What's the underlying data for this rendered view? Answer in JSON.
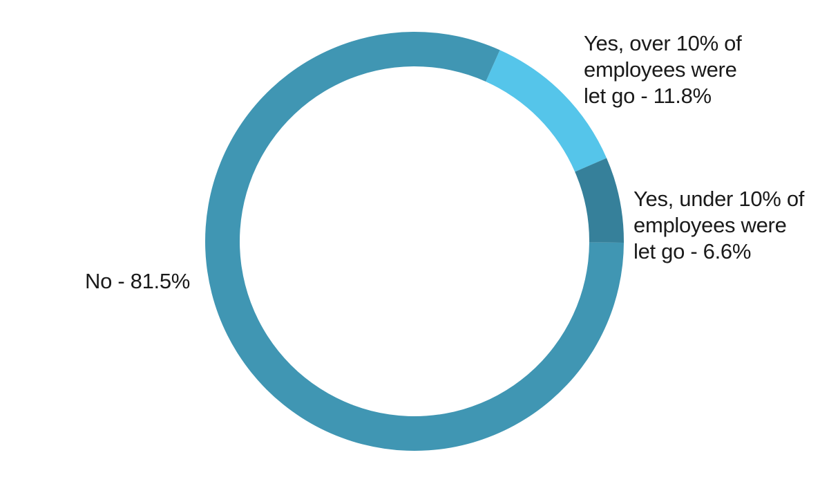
{
  "chart_data": {
    "type": "pie",
    "style": "donut",
    "start": "top",
    "direction": "clockwise",
    "slices": [
      {
        "key": "yes-over-10",
        "value": 11.8,
        "color": "#55c5ea",
        "label_lines": [
          "Yes, over 10% of",
          "employees were",
          "let go  - 11.8%"
        ]
      },
      {
        "key": "yes-under-10",
        "value": 6.6,
        "color": "#36809a",
        "label_lines": [
          "Yes, under 10% of",
          "employees were",
          "let go - 6.6%"
        ]
      },
      {
        "key": "no",
        "value": 81.5,
        "color": "#4096b3",
        "label_lines": [
          "No - 81.5%"
        ]
      }
    ]
  }
}
